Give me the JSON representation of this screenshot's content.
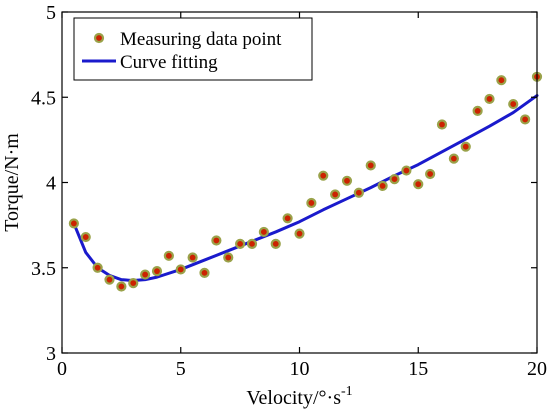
{
  "chart_data": {
    "type": "scatter",
    "title": "",
    "xlabel": "Velocity/°·s",
    "xlabel_superscript": "-1",
    "ylabel": "Torque/N·m",
    "xlim": [
      0,
      20
    ],
    "ylim": [
      3,
      5
    ],
    "x_ticks": [
      0,
      5,
      10,
      15,
      20
    ],
    "y_ticks": [
      3,
      3.5,
      4,
      4.5,
      5
    ],
    "x_tick_labels": [
      "0",
      "5",
      "10",
      "15",
      "20"
    ],
    "y_tick_labels": [
      "3",
      "3.5",
      "4",
      "4.5",
      "5"
    ],
    "grid": false,
    "legend_position": "top-left",
    "series": [
      {
        "name": "Measuring data point",
        "type": "scatter",
        "marker": "circle",
        "marker_fill": "#cc2200",
        "marker_edge": "#9aa24a",
        "x": [
          0.5,
          1.0,
          1.5,
          2.0,
          2.5,
          3.0,
          3.5,
          4.0,
          4.5,
          5.0,
          5.5,
          6.0,
          6.5,
          7.0,
          7.5,
          8.0,
          8.5,
          9.0,
          9.5,
          10.0,
          10.5,
          11.0,
          11.5,
          12.0,
          12.5,
          13.0,
          13.5,
          14.0,
          14.5,
          15.0,
          15.5,
          16.0,
          16.5,
          17.0,
          17.5,
          18.0,
          18.5,
          19.0,
          19.5,
          20.0
        ],
        "y": [
          3.76,
          3.68,
          3.5,
          3.43,
          3.39,
          3.41,
          3.46,
          3.48,
          3.57,
          3.49,
          3.56,
          3.47,
          3.66,
          3.56,
          3.64,
          3.64,
          3.71,
          3.64,
          3.79,
          3.7,
          3.88,
          4.04,
          3.93,
          4.01,
          3.94,
          4.1,
          3.98,
          4.02,
          4.07,
          3.99,
          4.05,
          4.34,
          4.14,
          4.21,
          4.42,
          4.49,
          4.6,
          4.46,
          4.37,
          4.62
        ]
      },
      {
        "name": "Curve fitting",
        "type": "line",
        "color": "#1a1acc",
        "x": [
          0.5,
          1.0,
          1.5,
          2.0,
          2.5,
          3.0,
          3.5,
          4.0,
          5.0,
          6.0,
          7.0,
          8.0,
          9.0,
          10.0,
          11.0,
          12.0,
          13.0,
          14.0,
          15.0,
          16.0,
          17.0,
          18.0,
          19.0,
          20.0
        ],
        "y": [
          3.76,
          3.59,
          3.5,
          3.455,
          3.43,
          3.425,
          3.43,
          3.445,
          3.49,
          3.545,
          3.6,
          3.655,
          3.71,
          3.77,
          3.84,
          3.905,
          3.97,
          4.04,
          4.105,
          4.18,
          4.255,
          4.33,
          4.41,
          4.51
        ]
      }
    ]
  }
}
